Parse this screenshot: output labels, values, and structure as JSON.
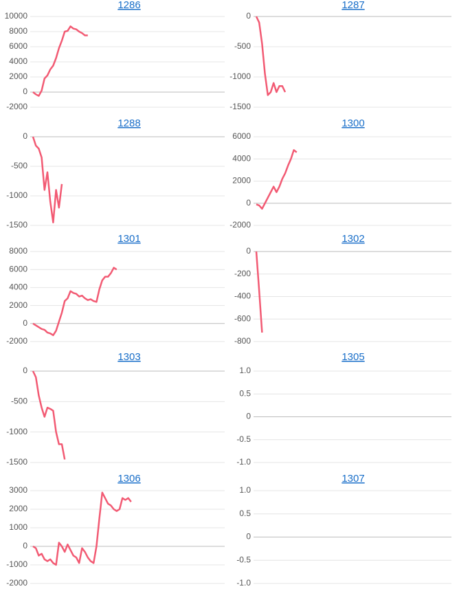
{
  "chart_data": [
    {
      "type": "line",
      "title": "1286",
      "color": "#f25a73",
      "ylim": [
        -2000,
        10000
      ],
      "yticks": [
        -2000,
        0,
        2000,
        4000,
        6000,
        8000,
        10000
      ],
      "values": [
        0,
        -300,
        -500,
        200,
        1800,
        2200,
        3000,
        3500,
        4500,
        5800,
        6800,
        8000,
        8100,
        8700,
        8400,
        8300,
        8000,
        7800,
        7500,
        7500
      ]
    },
    {
      "type": "line",
      "title": "1287",
      "color": "#f25a73",
      "ylim": [
        -1500,
        0
      ],
      "yticks": [
        -1500,
        -1000,
        -500,
        0
      ],
      "values": [
        0,
        -100,
        -450,
        -950,
        -1300,
        -1250,
        -1100,
        -1250,
        -1150,
        -1150,
        -1250
      ]
    },
    {
      "type": "line",
      "title": "1288",
      "color": "#f25a73",
      "ylim": [
        -1500,
        0
      ],
      "yticks": [
        -1500,
        -1000,
        -500,
        0
      ],
      "values": [
        0,
        -150,
        -200,
        -350,
        -900,
        -600,
        -1100,
        -1450,
        -900,
        -1200,
        -800
      ]
    },
    {
      "type": "line",
      "title": "1300",
      "color": "#f25a73",
      "ylim": [
        -2000,
        6000
      ],
      "yticks": [
        -2000,
        0,
        2000,
        4000,
        6000
      ],
      "values": [
        -100,
        -200,
        -500,
        0,
        500,
        1000,
        1500,
        1000,
        1500,
        2200,
        2700,
        3400,
        4000,
        4800,
        4600
      ]
    },
    {
      "type": "line",
      "title": "1301",
      "color": "#f25a73",
      "ylim": [
        -2000,
        8000
      ],
      "yticks": [
        -2000,
        0,
        2000,
        4000,
        6000,
        8000
      ],
      "values": [
        0,
        -200,
        -400,
        -600,
        -700,
        -1000,
        -1100,
        -1300,
        -800,
        200,
        1200,
        2500,
        2800,
        3600,
        3400,
        3300,
        3000,
        3100,
        2800,
        2600,
        2700,
        2500,
        2400,
        3800,
        4800,
        5200,
        5200,
        5600,
        6200,
        6000
      ]
    },
    {
      "type": "line",
      "title": "1302",
      "color": "#f25a73",
      "ylim": [
        -800,
        0
      ],
      "yticks": [
        -800,
        -600,
        -400,
        -200,
        0
      ],
      "values": [
        0,
        -350,
        -720
      ]
    },
    {
      "type": "line",
      "title": "1303",
      "color": "#f25a73",
      "ylim": [
        -1500,
        0
      ],
      "yticks": [
        -1500,
        -1000,
        -500,
        0
      ],
      "values": [
        0,
        -100,
        -400,
        -600,
        -750,
        -600,
        -620,
        -650,
        -1000,
        -1200,
        -1200,
        -1450
      ]
    },
    {
      "type": "line",
      "title": "1305",
      "color": "#f25a73",
      "ylim": [
        -1,
        1
      ],
      "yticks": [
        {
          "value": -1,
          "label": "-1.0"
        },
        -0.5,
        0,
        0.5,
        {
          "value": 1,
          "label": "1.0"
        }
      ],
      "values": []
    },
    {
      "type": "line",
      "title": "1306",
      "color": "#f25a73",
      "ylim": [
        -2000,
        3000
      ],
      "yticks": [
        -2000,
        -1000,
        0,
        1000,
        2000,
        3000
      ],
      "values": [
        0,
        -100,
        -500,
        -400,
        -700,
        -800,
        -700,
        -900,
        -1000,
        200,
        0,
        -300,
        100,
        -200,
        -500,
        -600,
        -900,
        -100,
        -300,
        -600,
        -800,
        -900,
        0,
        1500,
        2900,
        2600,
        2300,
        2200,
        2000,
        1900,
        2000,
        2600,
        2500,
        2600,
        2400
      ]
    },
    {
      "type": "line",
      "title": "1307",
      "color": "#f25a73",
      "ylim": [
        -1,
        1
      ],
      "yticks": [
        {
          "value": -1,
          "label": "-1.0"
        },
        -0.5,
        0,
        0.5,
        {
          "value": 1,
          "label": "1.0"
        }
      ],
      "values": []
    }
  ]
}
